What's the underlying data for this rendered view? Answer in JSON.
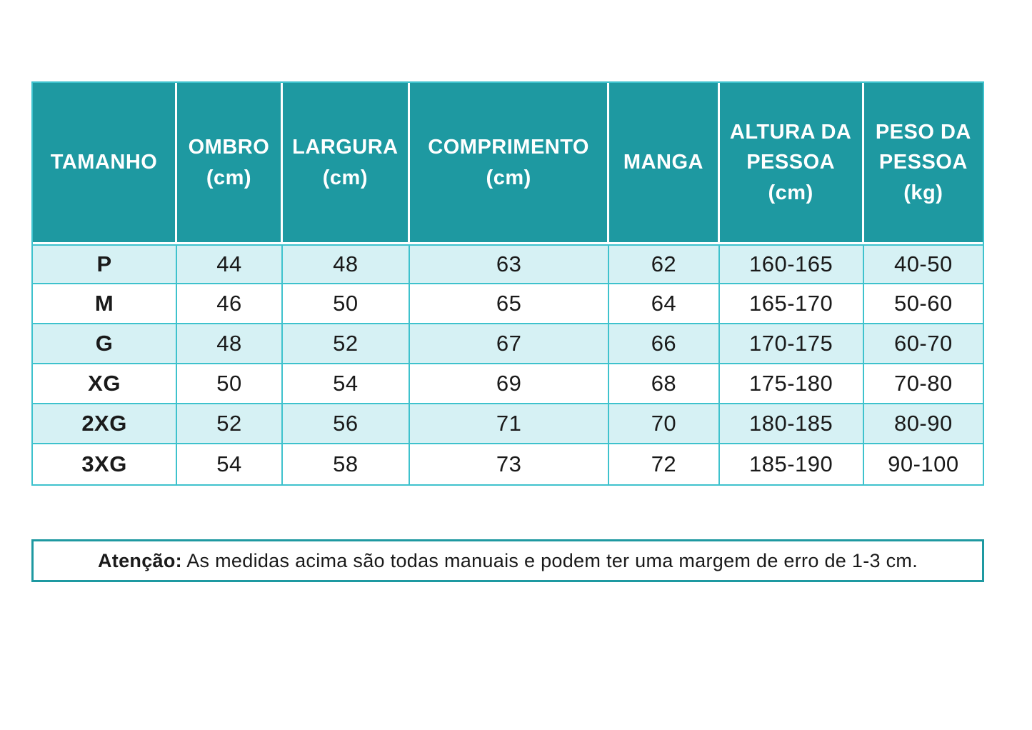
{
  "colors": {
    "header_bg": "#1E99A1",
    "row_alt_bg": "#D6F1F4",
    "row_bg": "#ffffff",
    "grid_border": "#3EC2CD",
    "note_border": "#1E99A1",
    "header_text": "#ffffff",
    "body_text": "#1A1A1A"
  },
  "chart_data": {
    "type": "table",
    "title": "",
    "columns": [
      {
        "label": "TAMANHO",
        "unit": ""
      },
      {
        "label": "OMBRO",
        "unit": "(cm)"
      },
      {
        "label": "LARGURA",
        "unit": "(cm)"
      },
      {
        "label": "COMPRIMENTO",
        "unit": "(cm)"
      },
      {
        "label": "MANGA",
        "unit": ""
      },
      {
        "label": "ALTURA DA PESSOA",
        "unit": "(cm)"
      },
      {
        "label": "PESO DA PESSOA",
        "unit": "(kg)"
      }
    ],
    "rows": [
      [
        "P",
        "44",
        "48",
        "63",
        "62",
        "160-165",
        "40-50"
      ],
      [
        "M",
        "46",
        "50",
        "65",
        "64",
        "165-170",
        "50-60"
      ],
      [
        "G",
        "48",
        "52",
        "67",
        "66",
        "170-175",
        "60-70"
      ],
      [
        "XG",
        "50",
        "54",
        "69",
        "68",
        "175-180",
        "70-80"
      ],
      [
        "2XG",
        "52",
        "56",
        "71",
        "70",
        "180-185",
        "80-90"
      ],
      [
        "3XG",
        "54",
        "58",
        "73",
        "72",
        "185-190",
        "90-100"
      ]
    ]
  },
  "note": {
    "label": "Atenção:",
    "text": "As medidas acima são todas manuais e podem ter uma margem de erro de 1-3 cm."
  }
}
